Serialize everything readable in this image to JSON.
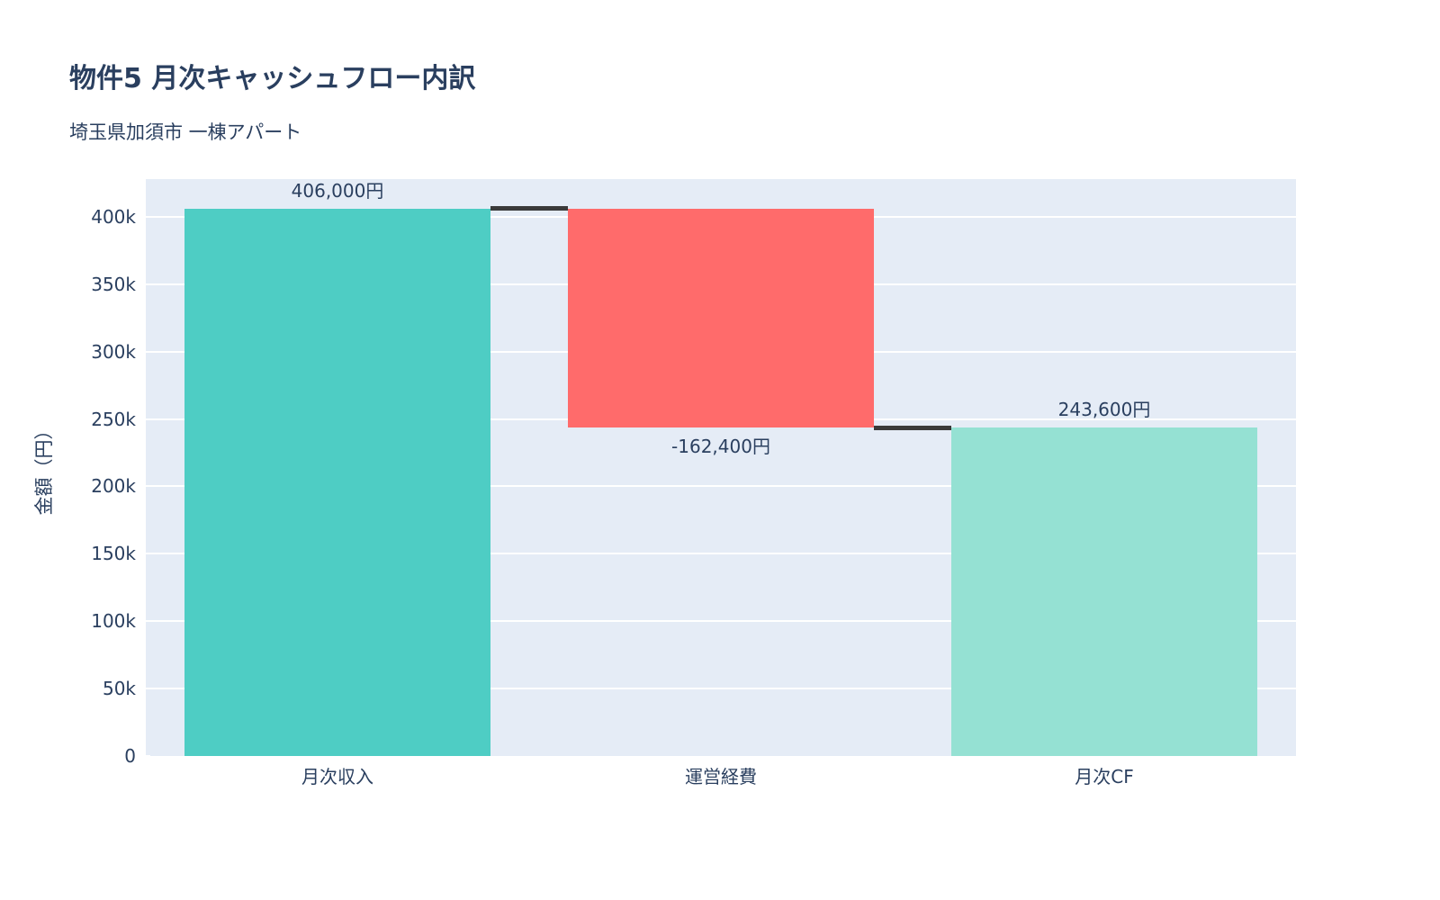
{
  "header": {
    "title": "物件5 月次キャッシュフロー内訳",
    "subtitle": "埼玉県加須市 一棟アパート"
  },
  "chart_data": {
    "type": "waterfall",
    "title": "物件5 月次キャッシュフロー内訳",
    "subtitle": "埼玉県加須市 一棟アパート",
    "xlabel": "",
    "ylabel": "金額（円）",
    "categories": [
      "月次収入",
      "運営経費",
      "月次CF"
    ],
    "measures": [
      "relative",
      "relative",
      "total"
    ],
    "values": [
      406000,
      -162400,
      243600
    ],
    "bar_labels": [
      "406,000円",
      "-162,400円",
      "243,600円"
    ],
    "label_positions": [
      "above",
      "below",
      "above"
    ],
    "ylim": [
      0,
      428000
    ],
    "yticks": {
      "values": [
        0,
        50000,
        100000,
        150000,
        200000,
        250000,
        300000,
        350000,
        400000
      ],
      "labels": [
        "0",
        "50k",
        "100k",
        "150k",
        "200k",
        "250k",
        "300k",
        "350k",
        "400k"
      ]
    },
    "grid": true,
    "legend": false,
    "colors": {
      "increasing": "#4ECDC4",
      "decreasing": "#FF6B6B",
      "total": "#95E1D3",
      "connector": "#3a3a3a",
      "plot_background": "#e5ecf6",
      "gridline": "#ffffff",
      "font": "#2a3f5f",
      "page_background": "#ffffff"
    }
  }
}
